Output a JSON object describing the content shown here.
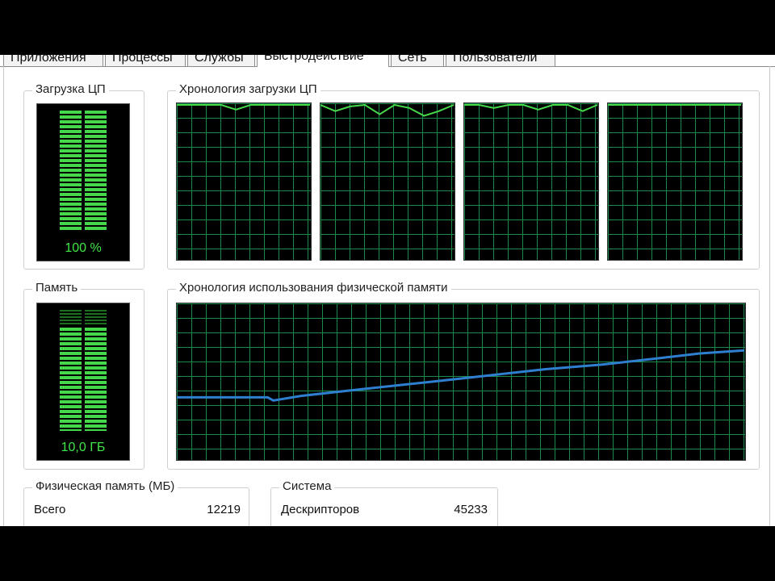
{
  "tabs": [
    {
      "label": "Приложения"
    },
    {
      "label": "Процессы"
    },
    {
      "label": "Службы"
    },
    {
      "label": "Быстродействие"
    },
    {
      "label": "Сеть"
    },
    {
      "label": "Пользователи"
    }
  ],
  "active_tab": "Быстродействие",
  "cpu": {
    "title": "Загрузка ЦП",
    "value": "100 %",
    "history_title": "Хронология загрузки ЦП",
    "cores": 4,
    "percent": 100
  },
  "memory": {
    "title": "Память",
    "value": "10,0 ГБ",
    "history_title": "Хронология использования физической памяти",
    "usage_fraction": 0.82
  },
  "physical": {
    "title": "Физическая память (МБ)",
    "rows": [
      {
        "label": "Всего",
        "value": "12219"
      }
    ]
  },
  "system": {
    "title": "Система",
    "rows": [
      {
        "label": "Дескрипторов",
        "value": "45233"
      }
    ]
  },
  "colors": {
    "meter_green": "#42e547",
    "grid": "#1c8a4a",
    "memory_line": "#2f7fd0",
    "cpu_line": "#45d84a"
  },
  "chart_data": [
    {
      "type": "line",
      "title": "Хронология использования физической памяти",
      "x": [
        0,
        10,
        16,
        17,
        22,
        32,
        45,
        55,
        65,
        75,
        85,
        92,
        100
      ],
      "values": [
        40,
        40,
        40,
        38,
        41,
        45,
        50,
        54,
        58,
        61,
        65,
        68,
        70
      ],
      "ylim": [
        0,
        100
      ],
      "grid": true
    },
    {
      "type": "line",
      "title": "Хронология загрузки ЦП",
      "series": [
        {
          "values": [
            100,
            100,
            100,
            100,
            96,
            100,
            100,
            100,
            100,
            100
          ]
        },
        {
          "values": [
            100,
            95,
            98,
            100,
            93,
            100,
            97,
            92,
            95,
            100
          ]
        },
        {
          "values": [
            100,
            100,
            97,
            100,
            100,
            96,
            100,
            100,
            95,
            100
          ]
        },
        {
          "values": [
            100,
            100,
            100,
            100,
            100,
            100,
            100,
            100,
            100,
            100
          ]
        }
      ],
      "ylim": [
        0,
        100
      ],
      "grid": true
    }
  ]
}
